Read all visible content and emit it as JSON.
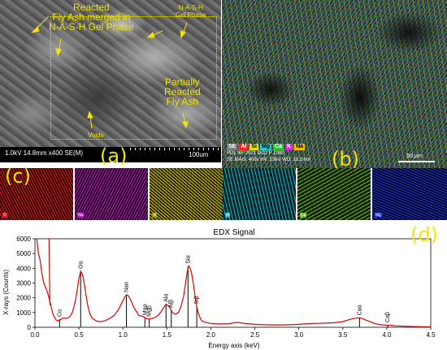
{
  "panel_a": {
    "panel_label": "(a)",
    "annotations": {
      "reacted": "Reacted\nFly Ash merged in\nN-A-S-H Gel Phase",
      "nash": "N-A-S-H\nGel Phase",
      "partially": "Partially\nReacted\nFly Ash",
      "voids": "Voids"
    },
    "info_bar": "1.0kV 14.8mm x400 SE(M)",
    "scale_label": "100um"
  },
  "panel_b": {
    "panel_label": "(b)",
    "legend": [
      {
        "label": "SE",
        "color": "#7a7a7a"
      },
      {
        "label": "Al",
        "color": "#ff2020"
      },
      {
        "label": "Si",
        "color": "#e8e000"
      },
      {
        "label": "Mg",
        "color": "#20d0d0"
      },
      {
        "label": "Ca",
        "color": "#30c030"
      },
      {
        "label": "K",
        "color": "#e020e0"
      },
      {
        "label": "Na",
        "color": "#f0c000"
      }
    ],
    "meta_line1": "PDL NF 2021 DO2 P 2040",
    "meta_line2": "SE MAG: 400x HV: 15kV WD: 15.1mm",
    "scale_label": "50 µm"
  },
  "panel_c": {
    "panel_label": "(c)",
    "maps": [
      {
        "element": "O",
        "color": "#e01818"
      },
      {
        "element": "Na",
        "color": "#d020d0"
      },
      {
        "element": "Si",
        "color": "#e0d000"
      },
      {
        "element": "Al",
        "color": "#20c8d0"
      },
      {
        "element": "Ca",
        "color": "#80d020"
      },
      {
        "element": "Mg",
        "color": "#2030e0"
      }
    ]
  },
  "panel_d": {
    "panel_label": "(d)"
  },
  "chart_data": {
    "type": "line",
    "title": "EDX Signal",
    "xlabel": "Energy axis (keV)",
    "ylabel": "X-rays (Counts)",
    "xlim": [
      0.0,
      4.5
    ],
    "ylim": [
      0,
      6000
    ],
    "xticks": [
      "0.0",
      "0.5",
      "1.0",
      "1.5",
      "2.0",
      "2.5",
      "3.0",
      "3.5",
      "4.0",
      "4.5"
    ],
    "yticks": [
      "0",
      "1000",
      "2000",
      "3000",
      "4000",
      "5000",
      "6000"
    ],
    "grid": false,
    "series": [
      {
        "color": "#e00000",
        "x": [
          0.02,
          0.04,
          0.06,
          0.08,
          0.1,
          0.12,
          0.14,
          0.16,
          0.18,
          0.2,
          0.22,
          0.24,
          0.26,
          0.28,
          0.3,
          0.32,
          0.35,
          0.38,
          0.4,
          0.42,
          0.44,
          0.46,
          0.48,
          0.5,
          0.52,
          0.54,
          0.56,
          0.58,
          0.6,
          0.62,
          0.65,
          0.7,
          0.75,
          0.8,
          0.85,
          0.9,
          0.95,
          1.0,
          1.02,
          1.04,
          1.06,
          1.08,
          1.1,
          1.12,
          1.15,
          1.18,
          1.21,
          1.24,
          1.27,
          1.3,
          1.33,
          1.36,
          1.4,
          1.44,
          1.47,
          1.49,
          1.51,
          1.53,
          1.55,
          1.57,
          1.6,
          1.63,
          1.66,
          1.69,
          1.71,
          1.73,
          1.74,
          1.75,
          1.76,
          1.78,
          1.8,
          1.82,
          1.84,
          1.86,
          1.88,
          1.9,
          1.95,
          2.0,
          2.1,
          2.2,
          2.3,
          2.4,
          2.5,
          2.6,
          2.7,
          2.8,
          2.9,
          3.0,
          3.1,
          3.2,
          3.3,
          3.4,
          3.5,
          3.55,
          3.6,
          3.65,
          3.69,
          3.72,
          3.75,
          3.8,
          3.85,
          3.9,
          3.95,
          4.0,
          4.05,
          4.1,
          4.2,
          4.3,
          4.4,
          4.5
        ],
        "y": [
          6000,
          5000,
          4500,
          3600,
          3000,
          2700,
          2400,
          2000,
          1500,
          1000,
          700,
          500,
          420,
          480,
          560,
          620,
          600,
          650,
          750,
          950,
          1300,
          1800,
          2500,
          3300,
          3800,
          3600,
          3000,
          2200,
          1500,
          1000,
          620,
          420,
          380,
          450,
          600,
          800,
          1200,
          1800,
          2050,
          2200,
          2150,
          1950,
          1700,
          1400,
          1100,
          800,
          760,
          700,
          580,
          560,
          600,
          650,
          800,
          1100,
          1400,
          1550,
          1500,
          1350,
          1150,
          950,
          900,
          1000,
          1400,
          2100,
          2900,
          3700,
          4000,
          4150,
          4050,
          3700,
          3000,
          2100,
          1400,
          900,
          600,
          420,
          320,
          260,
          220,
          240,
          330,
          250,
          200,
          170,
          160,
          160,
          170,
          200,
          240,
          260,
          280,
          300,
          380,
          480,
          560,
          620,
          640,
          600,
          520,
          400,
          280,
          200,
          160,
          150,
          130,
          100,
          70,
          50,
          40,
          30
        ]
      }
    ],
    "peaks": [
      {
        "label": "Cα",
        "x": 0.28,
        "y": 550
      },
      {
        "label": "Oα",
        "x": 0.52,
        "y": 3800
      },
      {
        "label": "Naα",
        "x": 1.04,
        "y": 2200
      },
      {
        "label": "Mgα",
        "x": 1.25,
        "y": 650
      },
      {
        "label": "Mgβ",
        "x": 1.3,
        "y": 560
      },
      {
        "label": "Alα",
        "x": 1.49,
        "y": 1550
      },
      {
        "label": "Alβ",
        "x": 1.55,
        "y": 1150
      },
      {
        "label": "Siα",
        "x": 1.74,
        "y": 4150
      },
      {
        "label": "Siβ",
        "x": 1.84,
        "y": 1400
      },
      {
        "label": "Caα",
        "x": 3.69,
        "y": 640
      },
      {
        "label": "Caβ",
        "x": 4.01,
        "y": 160
      }
    ]
  }
}
